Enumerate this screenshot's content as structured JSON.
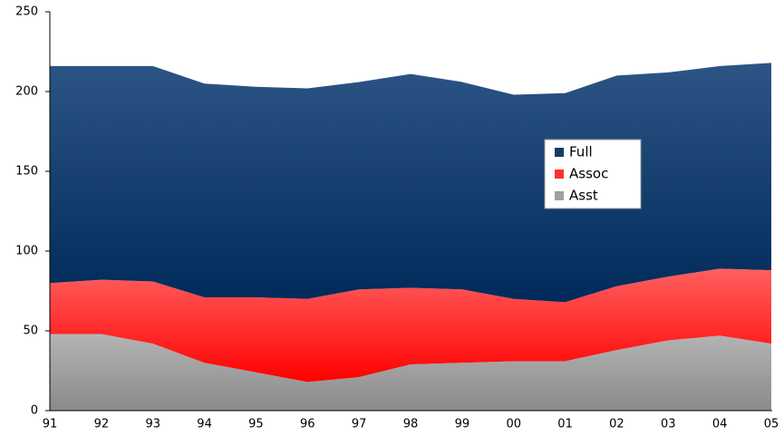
{
  "chart_data": {
    "type": "stacked_area",
    "categories": [
      "91",
      "92",
      "93",
      "94",
      "95",
      "96",
      "97",
      "98",
      "99",
      "00",
      "01",
      "02",
      "03",
      "04",
      "05"
    ],
    "series": [
      {
        "name": "Asst",
        "color": "#a0a0a0",
        "values": [
          48,
          48,
          42,
          30,
          24,
          18,
          21,
          29,
          30,
          31,
          31,
          38,
          44,
          47,
          42
        ]
      },
      {
        "name": "Assoc",
        "color": "#ff3030",
        "values": [
          32,
          34,
          39,
          41,
          47,
          52,
          55,
          48,
          46,
          39,
          37,
          40,
          40,
          42,
          46
        ]
      },
      {
        "name": "Full",
        "color": "#123d6b",
        "values": [
          136,
          134,
          135,
          134,
          132,
          132,
          130,
          134,
          130,
          128,
          131,
          132,
          128,
          127,
          130
        ]
      }
    ],
    "ylim": [
      0,
      250
    ],
    "yticks": [
      0,
      50,
      100,
      150,
      200,
      250
    ],
    "legend": "upper-right"
  }
}
